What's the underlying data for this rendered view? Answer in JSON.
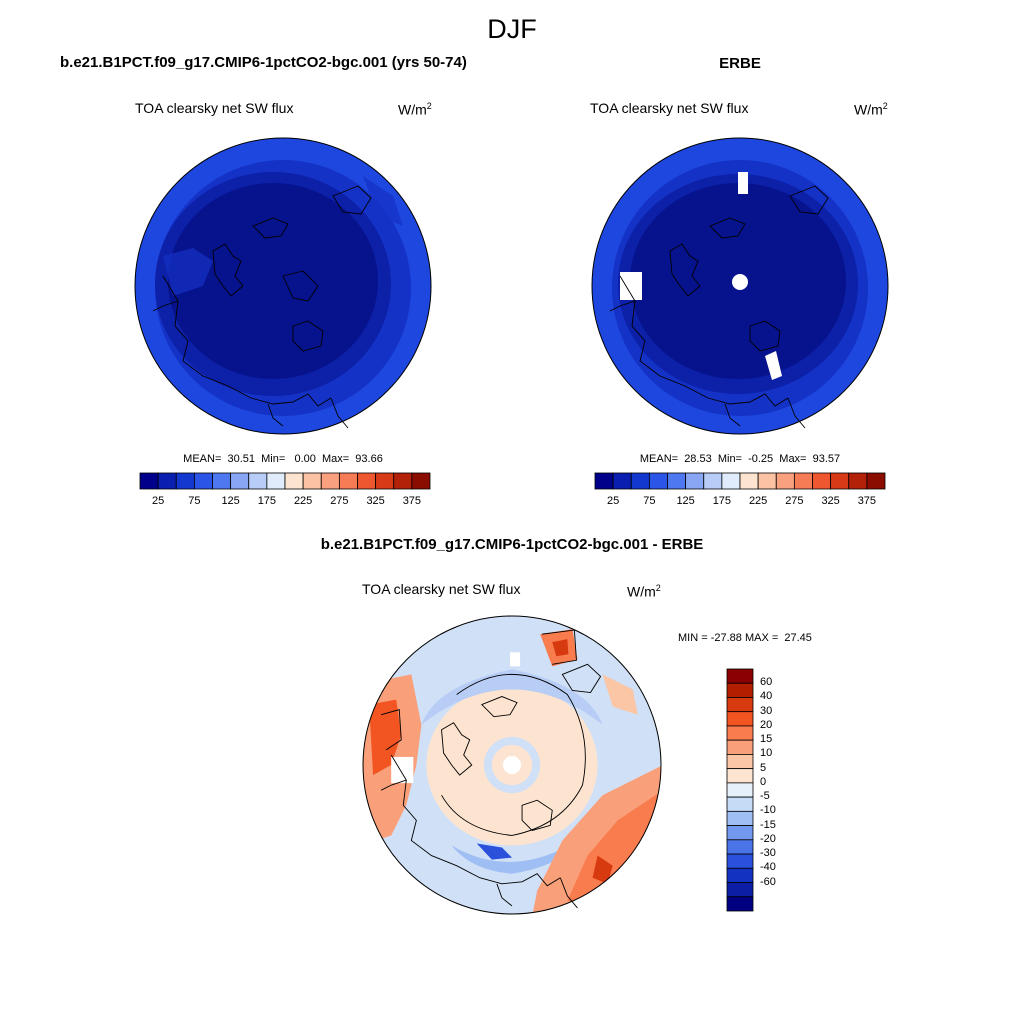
{
  "season": "DJF",
  "panels": {
    "model": {
      "title": "b.e21.B1PCT.f09_g17.CMIP6-1pctCO2-bgc.001 (yrs 50-74)",
      "variable": "TOA clearsky net SW flux",
      "units_base": "W/m",
      "units_exp": "2",
      "stats": "MEAN=  30.51  Min=   0.00  Max=  93.66"
    },
    "obs": {
      "title": "ERBE",
      "variable": "TOA clearsky net SW flux",
      "units_base": "W/m",
      "units_exp": "2",
      "stats": "MEAN=  28.53  Min=  -0.25  Max=  93.57"
    },
    "diff": {
      "title": "b.e21.B1PCT.f09_g17.CMIP6-1pctCO2-bgc.001 - ERBE",
      "variable": "TOA clearsky net SW flux",
      "units_base": "W/m",
      "units_exp": "2",
      "stats": "MIN = -27.88 MAX =  27.45"
    }
  },
  "colorbar_abs": {
    "colors": [
      "#00008b",
      "#0a1fb0",
      "#1238d0",
      "#2a55e6",
      "#4d78f0",
      "#88a6f4",
      "#b7cdf7",
      "#e0ecfb",
      "#fde4d0",
      "#fbc3a4",
      "#f9a07e",
      "#f67c56",
      "#ef5730",
      "#d83a17",
      "#b32108",
      "#8b0d00"
    ],
    "ticks": [
      "25",
      "75",
      "125",
      "175",
      "225",
      "275",
      "325",
      "375"
    ]
  },
  "colorbar_diff": {
    "colors": [
      "#8b0000",
      "#b31d00",
      "#d83a10",
      "#f25522",
      "#f87c4e",
      "#f9a07a",
      "#fbc6a6",
      "#fde4d0",
      "#e6f0fb",
      "#c6dbf6",
      "#9fbef3",
      "#7299ee",
      "#4a74e8",
      "#2a50dc",
      "#1432c2",
      "#0c1ea3",
      "#000080"
    ],
    "labels": [
      "60",
      "40",
      "30",
      "20",
      "15",
      "10",
      "5",
      "0",
      "-5",
      "-10",
      "-15",
      "-20",
      "-30",
      "-40",
      "-60"
    ]
  }
}
